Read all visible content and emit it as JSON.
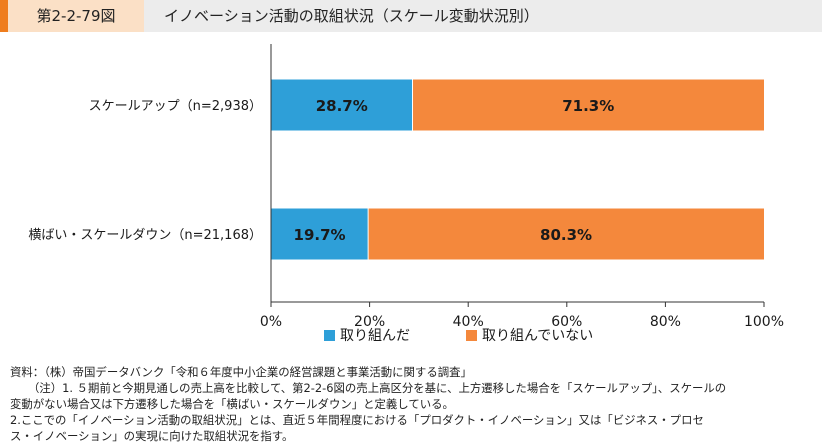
{
  "header": {
    "figure_label": "第2-2-79図",
    "title": "イノベーション活動の取組状況（スケール変動状況別）"
  },
  "chart_data": {
    "type": "bar",
    "orientation": "horizontal",
    "stacked": true,
    "categories": [
      "スケールアップ（n=2,938）",
      "横ばい・スケールダウン（n=21,168）"
    ],
    "series": [
      {
        "name": "取り組んだ",
        "color": "#2e9fd8",
        "values": [
          28.7,
          19.7
        ],
        "labels": [
          "28.7%",
          "19.7%"
        ]
      },
      {
        "name": "取り組んでいない",
        "color": "#f4883c",
        "values": [
          71.3,
          80.3
        ],
        "labels": [
          "71.3%",
          "80.3%"
        ]
      }
    ],
    "xlim": [
      0,
      100
    ],
    "xticks": [
      "0%",
      "20%",
      "40%",
      "60%",
      "80%",
      "100%"
    ],
    "grid": false,
    "legend_position": "bottom"
  },
  "notes": [
    "資料：（株）帝国データバンク「令和６年度中小企業の経営課題と事業活動に関する調査」",
    "（注）1. ５期前と今期見通しの売上高を比較して、第2-2-6図の売上高区分を基に、上方遷移した場合を「スケールアップ」、スケールの",
    "変動がない場合又は下方遷移した場合を「横ばい・スケールダウン」と定義している。",
    "2.ここでの「イノベーション活動の取組状況」とは、直近５年間程度における「プロダクト・イノベーション」又は「ビジネス・プロセ",
    "ス・イノベーション」の実現に向けた取組状況を指す。"
  ]
}
